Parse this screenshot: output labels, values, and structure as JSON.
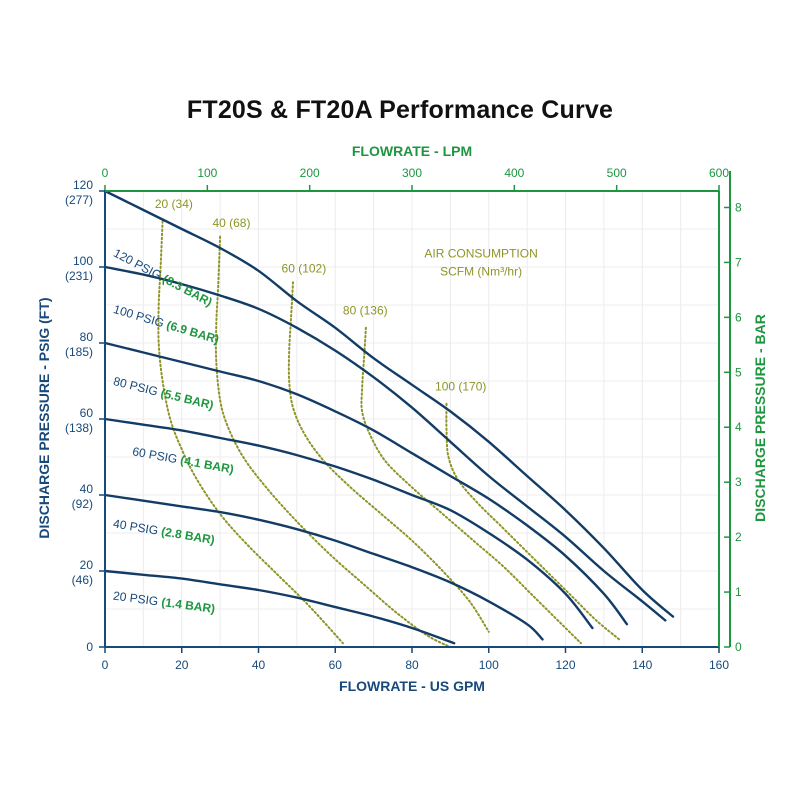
{
  "chart_data": {
    "type": "line",
    "title": "FT20S & FT20A Performance Curve",
    "xlabel": "FLOWRATE - US GPM",
    "x2label": "FLOWRATE - LPM",
    "ylabel": "DISCHARGE PRESSURE - PSIG (FT)",
    "y2label": "DISCHARGE PRESSURE - BAR",
    "xlim": [
      0,
      160
    ],
    "ylim": [
      0,
      120
    ],
    "x2lim": [
      0,
      600
    ],
    "y2lim": [
      0,
      8.3
    ],
    "x_ticks": [
      "0",
      "20",
      "40",
      "60",
      "80",
      "100",
      "120",
      "140",
      "160"
    ],
    "x2_ticks": [
      "0",
      "100",
      "200",
      "300",
      "400",
      "500",
      "600"
    ],
    "y_ticks": [
      {
        "value": 0,
        "label": "0",
        "sub": ""
      },
      {
        "value": 20,
        "label": "20",
        "sub": "(46)"
      },
      {
        "value": 40,
        "label": "40",
        "sub": "(92)"
      },
      {
        "value": 60,
        "label": "60",
        "sub": "(138)"
      },
      {
        "value": 80,
        "label": "80",
        "sub": "(185)"
      },
      {
        "value": 100,
        "label": "100",
        "sub": "(231)"
      },
      {
        "value": 120,
        "label": "120",
        "sub": "(277)"
      }
    ],
    "y2_ticks": [
      "0",
      "1",
      "2",
      "3",
      "4",
      "5",
      "6",
      "7",
      "8"
    ],
    "series": [
      {
        "name": "120 PSIG",
        "name_bar": "(8.3 BAR)",
        "label_pos": [
          2,
          103
        ],
        "points": [
          [
            0,
            120
          ],
          [
            10,
            115
          ],
          [
            20,
            110
          ],
          [
            30,
            105
          ],
          [
            40,
            99
          ],
          [
            50,
            91
          ],
          [
            60,
            84
          ],
          [
            70,
            76
          ],
          [
            80,
            69
          ],
          [
            90,
            62
          ],
          [
            100,
            54
          ],
          [
            110,
            45
          ],
          [
            120,
            36
          ],
          [
            130,
            26
          ],
          [
            140,
            15
          ],
          [
            148,
            8
          ]
        ]
      },
      {
        "name": "100 PSIG",
        "name_bar": "(6.9 BAR)",
        "label_pos": [
          2,
          88
        ],
        "points": [
          [
            0,
            100
          ],
          [
            10,
            98
          ],
          [
            20,
            95.5
          ],
          [
            30,
            92.5
          ],
          [
            40,
            89
          ],
          [
            50,
            84
          ],
          [
            60,
            78
          ],
          [
            70,
            71
          ],
          [
            80,
            63
          ],
          [
            90,
            54
          ],
          [
            100,
            45
          ],
          [
            110,
            37
          ],
          [
            120,
            29
          ],
          [
            130,
            20
          ],
          [
            140,
            12
          ],
          [
            146,
            7
          ]
        ]
      },
      {
        "name": "80 PSIG",
        "name_bar": "(5.5 BAR)",
        "label_pos": [
          2,
          69
        ],
        "points": [
          [
            0,
            80
          ],
          [
            10,
            77.5
          ],
          [
            20,
            75
          ],
          [
            30,
            72.5
          ],
          [
            40,
            70
          ],
          [
            50,
            66.5
          ],
          [
            60,
            62
          ],
          [
            70,
            57
          ],
          [
            80,
            51
          ],
          [
            90,
            45
          ],
          [
            100,
            39
          ],
          [
            110,
            32
          ],
          [
            120,
            24
          ],
          [
            130,
            14
          ],
          [
            136,
            6
          ]
        ]
      },
      {
        "name": "60 PSIG",
        "name_bar": "(4.1 BAR)",
        "label_pos": [
          7,
          50.5
        ],
        "points": [
          [
            0,
            60
          ],
          [
            10,
            58.5
          ],
          [
            20,
            57
          ],
          [
            30,
            55
          ],
          [
            40,
            53
          ],
          [
            50,
            50.5
          ],
          [
            60,
            47.5
          ],
          [
            70,
            44
          ],
          [
            80,
            40
          ],
          [
            90,
            36
          ],
          [
            100,
            30
          ],
          [
            110,
            23
          ],
          [
            120,
            14
          ],
          [
            127,
            5
          ]
        ]
      },
      {
        "name": "40 PSIG",
        "name_bar": "(2.8 BAR)",
        "label_pos": [
          2,
          31.5
        ],
        "points": [
          [
            0,
            40
          ],
          [
            10,
            38.5
          ],
          [
            20,
            37
          ],
          [
            30,
            35.5
          ],
          [
            40,
            33.5
          ],
          [
            50,
            31
          ],
          [
            60,
            28
          ],
          [
            70,
            24.5
          ],
          [
            80,
            21
          ],
          [
            90,
            17
          ],
          [
            100,
            12
          ],
          [
            110,
            6
          ],
          [
            114,
            2
          ]
        ]
      },
      {
        "name": "20 PSIG",
        "name_bar": "(1.4 BAR)",
        "label_pos": [
          2,
          12.5
        ],
        "points": [
          [
            0,
            20
          ],
          [
            10,
            19
          ],
          [
            20,
            18
          ],
          [
            30,
            16.5
          ],
          [
            40,
            15
          ],
          [
            50,
            13
          ],
          [
            60,
            10.5
          ],
          [
            70,
            8
          ],
          [
            80,
            5
          ],
          [
            91,
            1
          ]
        ]
      }
    ],
    "air_consumption": {
      "title_line1": "AIR CONSUMPTION",
      "title_line2": "SCFM (Nm³/hr)",
      "title_pos": [
        98,
        102.5
      ],
      "lines": [
        {
          "label": "20 (34)",
          "label_pos": [
            13,
            115.5
          ],
          "points": [
            [
              15,
              112
            ],
            [
              14.5,
              100
            ],
            [
              14,
              90
            ],
            [
              14,
              80
            ],
            [
              15,
              70
            ],
            [
              17,
              60
            ],
            [
              20,
              52
            ],
            [
              24,
              44
            ],
            [
              30,
              35
            ],
            [
              37,
              27
            ],
            [
              45,
              19
            ],
            [
              53,
              11
            ],
            [
              62,
              1
            ]
          ]
        },
        {
          "label": "40 (68)",
          "label_pos": [
            28,
            110.5
          ],
          "points": [
            [
              30,
              108
            ],
            [
              29.5,
              95
            ],
            [
              29,
              85
            ],
            [
              29,
              75
            ],
            [
              30,
              65
            ],
            [
              32,
              58
            ],
            [
              36,
              50
            ],
            [
              42,
              42
            ],
            [
              50,
              33
            ],
            [
              59,
              24
            ],
            [
              68,
              16
            ],
            [
              76,
              9
            ],
            [
              84,
              3
            ],
            [
              90,
              0
            ]
          ]
        },
        {
          "label": "60 (102)",
          "label_pos": [
            46,
            98.5
          ],
          "points": [
            [
              49,
              96
            ],
            [
              48.5,
              87
            ],
            [
              48,
              78
            ],
            [
              48,
              70
            ],
            [
              49,
              63
            ],
            [
              52,
              56
            ],
            [
              57,
              49
            ],
            [
              64,
              42
            ],
            [
              72,
              35
            ],
            [
              80,
              28
            ],
            [
              88,
              20
            ],
            [
              95,
              12
            ],
            [
              100,
              4
            ]
          ]
        },
        {
          "label": "80 (136)",
          "label_pos": [
            62,
            87.5
          ],
          "points": [
            [
              68,
              84
            ],
            [
              67.5,
              76
            ],
            [
              67,
              68
            ],
            [
              67,
              62
            ],
            [
              69,
              56
            ],
            [
              73,
              49
            ],
            [
              80,
              42
            ],
            [
              88,
              35
            ],
            [
              96,
              28
            ],
            [
              104,
              21
            ],
            [
              112,
              13
            ],
            [
              119,
              6
            ],
            [
              124,
              1
            ]
          ]
        },
        {
          "label": "100 (170)",
          "label_pos": [
            86,
            67.5
          ],
          "points": [
            [
              89,
              64
            ],
            [
              89,
              57
            ],
            [
              89.5,
              50
            ],
            [
              92,
              44
            ],
            [
              97,
              38
            ],
            [
              103,
              32
            ],
            [
              110,
              25
            ],
            [
              116,
              19
            ],
            [
              122,
              13
            ],
            [
              128,
              7
            ],
            [
              134,
              2
            ]
          ]
        }
      ]
    }
  },
  "colors": {
    "navy": "#17497a",
    "green": "#1e9640",
    "olive": "#8e9427",
    "curve": "#123c66",
    "frame_left": "#17497a",
    "frame_right": "#1e9640"
  }
}
